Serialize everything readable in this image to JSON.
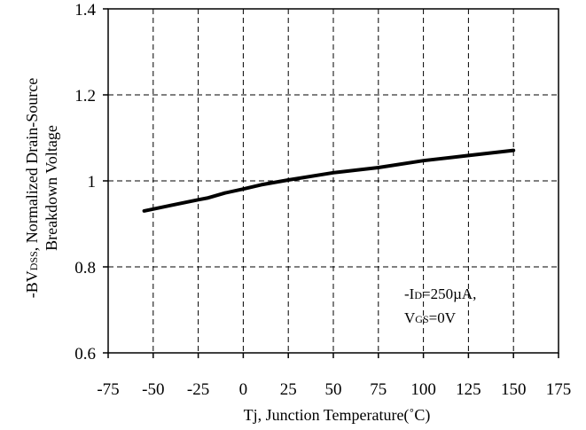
{
  "chart_data": {
    "type": "line",
    "title": "",
    "xlabel": "Tj, Junction Temperature(˚C)",
    "ylabel": {
      "line1": {
        "prefix": "-BV",
        "sub": "DSS",
        "suffix": ", Normalized Drain-Source"
      },
      "line2": "Breakdown Voltage"
    },
    "xlim": [
      -75,
      175
    ],
    "ylim": [
      0.6,
      1.4
    ],
    "xticks": [
      -75,
      -50,
      -25,
      0,
      25,
      50,
      75,
      100,
      125,
      150,
      175
    ],
    "yticks": [
      0.6,
      0.8,
      1,
      1.2,
      1.4
    ],
    "ytick_labels": [
      "0.6",
      "0.8",
      "1",
      "1.2",
      "1.4"
    ],
    "grid": true,
    "grid_style": "dashed",
    "series": [
      {
        "color": "#000000",
        "x": [
          -55,
          -40,
          -25,
          -20,
          -10,
          0,
          10,
          25,
          50,
          75,
          100,
          125,
          150
        ],
        "y": [
          0.93,
          0.943,
          0.956,
          0.96,
          0.972,
          0.981,
          0.991,
          1.002,
          1.019,
          1.031,
          1.047,
          1.059,
          1.071
        ]
      }
    ],
    "annotation": {
      "line1": {
        "prefix": "-I",
        "sub": "D",
        "suffix": "=250µA,"
      },
      "line2": {
        "prefix": "V",
        "sub": "GS",
        "suffix": "=0V"
      }
    }
  }
}
